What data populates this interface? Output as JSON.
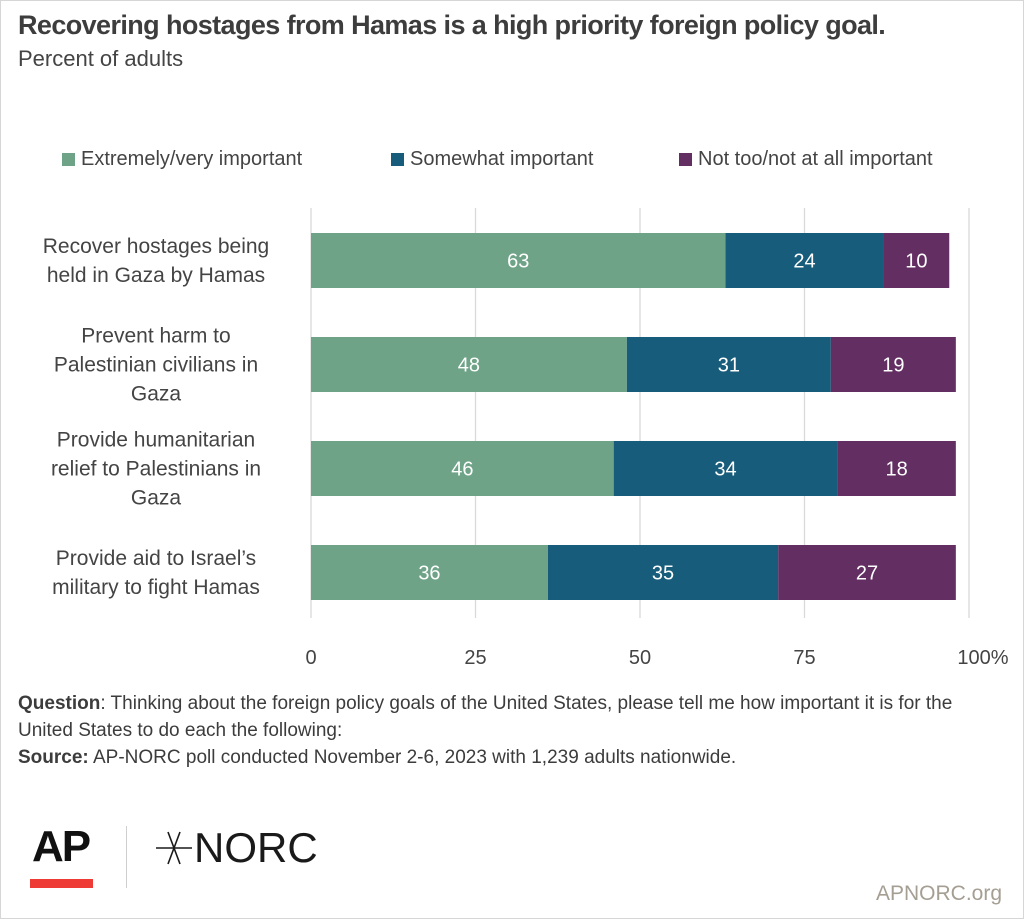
{
  "header": {
    "title": "Recovering hostages from Hamas is a high priority foreign policy goal.",
    "subtitle": "Percent of adults"
  },
  "legend": [
    {
      "label": "Extremely/very important",
      "color": "#6ea387"
    },
    {
      "label": "Somewhat important",
      "color": "#185c7b"
    },
    {
      "label": "Not too/not at all important",
      "color": "#632f63"
    }
  ],
  "chart_data": {
    "type": "bar",
    "orientation": "horizontal",
    "stacked": true,
    "title": "Recovering hostages from Hamas is a high priority foreign policy goal.",
    "subtitle": "Percent of adults",
    "xlabel": "",
    "ylabel": "",
    "xlim": [
      0,
      100
    ],
    "x_ticks": [
      0,
      25,
      50,
      75,
      100
    ],
    "x_tick_labels": [
      "0",
      "25",
      "50",
      "75",
      "100%"
    ],
    "grid": true,
    "legend_position": "top",
    "categories": [
      [
        "Recover hostages being",
        "held in Gaza by Hamas"
      ],
      [
        "Prevent harm to",
        "Palestinian civilians in",
        "Gaza"
      ],
      [
        "Provide humanitarian",
        "relief to Palestinians in",
        "Gaza"
      ],
      [
        "Provide aid to Israel’s",
        "military to fight Hamas"
      ]
    ],
    "series": [
      {
        "name": "Extremely/very important",
        "color": "#6ea387",
        "values": [
          63,
          48,
          46,
          36
        ]
      },
      {
        "name": "Somewhat important",
        "color": "#185c7b",
        "values": [
          24,
          31,
          34,
          35
        ]
      },
      {
        "name": "Not too/not at all important",
        "color": "#632f63",
        "values": [
          10,
          19,
          18,
          27
        ]
      }
    ]
  },
  "footer": {
    "question_label": "Question",
    "question_text": ": Thinking about the foreign policy goals of the United States, please tell me how important it is for the United States to do each the following:",
    "source_label": "Source:",
    "source_text": " AP-NORC poll conducted November 2-6, 2023 with 1,239 adults nationwide."
  },
  "branding": {
    "ap_logo": "AP",
    "norc_logo": "NORC",
    "site_url": "APNORC.org"
  }
}
